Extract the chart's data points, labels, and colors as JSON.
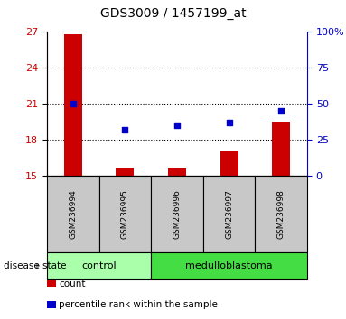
{
  "title": "GDS3009 / 1457199_at",
  "samples": [
    "GSM236994",
    "GSM236995",
    "GSM236996",
    "GSM236997",
    "GSM236998"
  ],
  "count_values": [
    26.8,
    15.7,
    15.65,
    17.0,
    19.5
  ],
  "percentile_values": [
    50,
    32,
    35,
    37,
    45
  ],
  "ylim_left": [
    15,
    27
  ],
  "ylim_right": [
    0,
    100
  ],
  "yticks_left": [
    15,
    18,
    21,
    24,
    27
  ],
  "yticks_right": [
    0,
    25,
    50,
    75,
    100
  ],
  "ytick_labels_right": [
    "0",
    "25",
    "50",
    "75",
    "100%"
  ],
  "bar_color": "#cc0000",
  "dot_color": "#0000cc",
  "control_color": "#aaffaa",
  "medulloblastoma_color": "#44dd44",
  "label_box_color": "#c8c8c8",
  "disease_state_label": "disease state",
  "control_label": "control",
  "medulloblastoma_label": "medulloblastoma",
  "legend_count": "count",
  "legend_percentile": "percentile rank within the sample",
  "n_control": 2,
  "n_medulloblastoma": 3,
  "figsize": [
    3.83,
    3.54
  ],
  "dpi": 100
}
